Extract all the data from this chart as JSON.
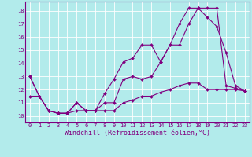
{
  "xlabel": "Windchill (Refroidissement éolien,°C)",
  "background_color": "#b2ebeb",
  "line_color": "#800080",
  "grid_color": "#ffffff",
  "xlim": [
    -0.5,
    23.5
  ],
  "ylim": [
    9.5,
    18.7
  ],
  "xticks": [
    0,
    1,
    2,
    3,
    4,
    5,
    6,
    7,
    8,
    9,
    10,
    11,
    12,
    13,
    14,
    15,
    16,
    17,
    18,
    19,
    20,
    21,
    22,
    23
  ],
  "yticks": [
    10,
    11,
    12,
    13,
    14,
    15,
    16,
    17,
    18
  ],
  "line1_x": [
    0,
    1,
    2,
    3,
    4,
    5,
    6,
    7,
    8,
    9,
    10,
    11,
    12,
    13,
    14,
    15,
    16,
    17,
    18,
    19,
    20,
    21,
    22,
    23
  ],
  "line1_y": [
    13.0,
    11.5,
    10.4,
    10.2,
    10.2,
    11.0,
    10.4,
    10.4,
    11.7,
    12.8,
    14.1,
    14.4,
    15.4,
    15.4,
    14.1,
    15.4,
    17.0,
    18.2,
    18.2,
    17.5,
    16.8,
    14.8,
    12.3,
    11.9
  ],
  "line2_x": [
    0,
    1,
    2,
    3,
    4,
    5,
    6,
    7,
    8,
    9,
    10,
    11,
    12,
    13,
    14,
    15,
    16,
    17,
    18,
    19,
    20,
    21,
    22,
    23
  ],
  "line2_y": [
    13.0,
    11.5,
    10.4,
    10.2,
    10.2,
    11.0,
    10.4,
    10.4,
    11.0,
    11.0,
    12.8,
    13.0,
    12.8,
    13.0,
    14.1,
    15.4,
    15.4,
    17.0,
    18.2,
    18.2,
    18.2,
    12.3,
    12.1,
    11.9
  ],
  "line3_x": [
    0,
    1,
    2,
    3,
    4,
    5,
    6,
    7,
    8,
    9,
    10,
    11,
    12,
    13,
    14,
    15,
    16,
    17,
    18,
    19,
    20,
    21,
    22,
    23
  ],
  "line3_y": [
    11.5,
    11.5,
    10.4,
    10.2,
    10.2,
    10.4,
    10.4,
    10.4,
    10.4,
    10.4,
    11.0,
    11.2,
    11.5,
    11.5,
    11.8,
    12.0,
    12.3,
    12.5,
    12.5,
    12.0,
    12.0,
    12.0,
    12.0,
    11.9
  ],
  "xlabel_fontsize": 6,
  "tick_fontsize": 5,
  "linewidth": 0.8,
  "markersize": 2.0
}
